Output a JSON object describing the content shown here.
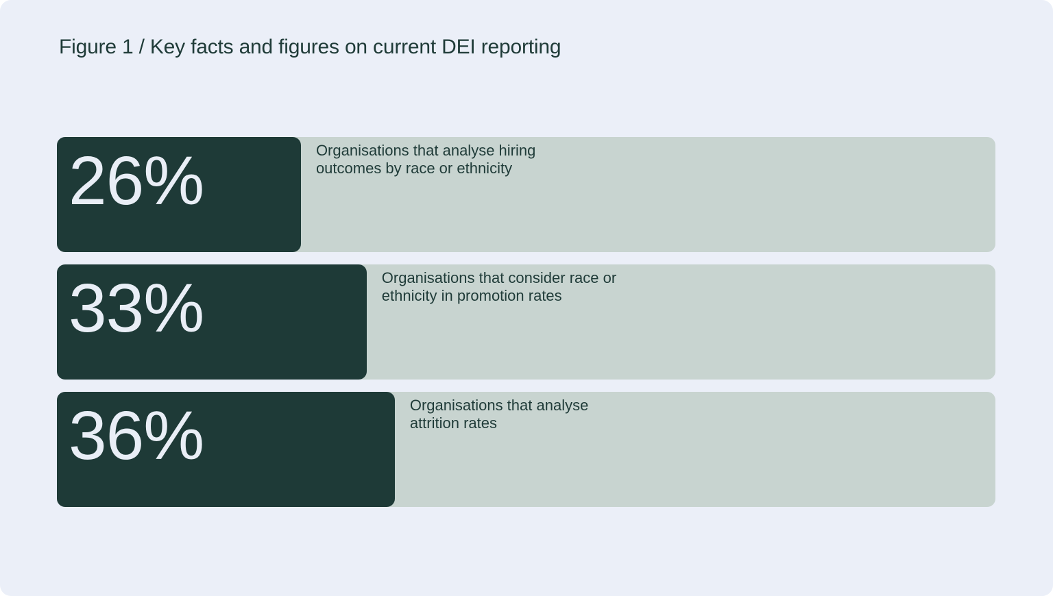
{
  "title": "Figure 1 / Key facts and figures on current DEI reporting",
  "colors": {
    "page_background": "#EBEFF8",
    "bar_track": "#C8D4D0",
    "bar_fill": "#1E3A37",
    "value_text": "#E9EEF6",
    "dark_text": "#1F3B38"
  },
  "chart_data": {
    "type": "bar",
    "orientation": "horizontal",
    "title": "Figure 1 / Key facts and figures on current DEI reporting",
    "unit": "%",
    "xlim": [
      0,
      100
    ],
    "grid": false,
    "legend": false,
    "items": [
      {
        "value": 26,
        "value_label": "26%",
        "label": "Organisations that analyse hiring\noutcomes by race or ethnicity"
      },
      {
        "value": 33,
        "value_label": "33%",
        "label": "Organisations that consider race or\nethnicity in promotion rates"
      },
      {
        "value": 36,
        "value_label": "36%",
        "label": "Organisations that analyse\nattrition rates"
      }
    ]
  }
}
